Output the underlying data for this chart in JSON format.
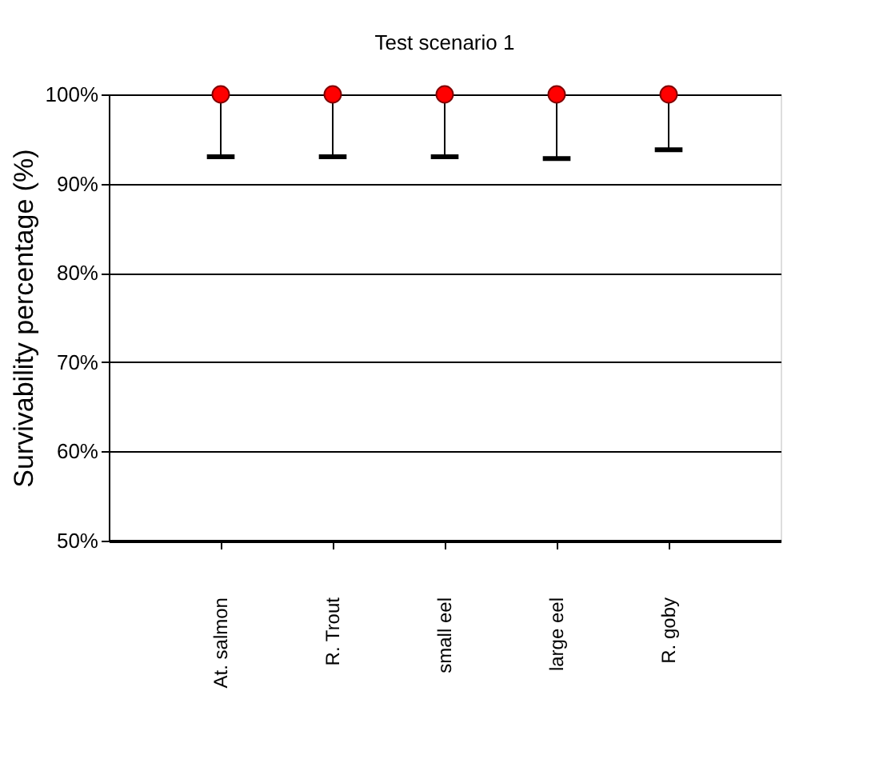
{
  "chart_data": {
    "type": "scatter",
    "title": "Test scenario 1",
    "ylabel": "Survivability percentage (%)",
    "categories": [
      "At. salmon",
      "R. Trout",
      "small eel",
      "large  eel",
      "R. goby"
    ],
    "series": [
      {
        "color": "#ff0000",
        "values": [
          100,
          100,
          100,
          100,
          100
        ],
        "errors": [
          [
            93,
            100
          ],
          [
            93,
            100
          ],
          [
            93,
            100
          ],
          [
            92.8,
            100
          ],
          [
            93.8,
            100
          ]
        ]
      }
    ],
    "ylim": [
      50,
      100
    ],
    "yticks": [
      {
        "value": 50,
        "label": "50%"
      },
      {
        "value": 60,
        "label": "60%"
      },
      {
        "value": 70,
        "label": "70%"
      },
      {
        "value": 80,
        "label": "80%"
      },
      {
        "value": 90,
        "label": "90%"
      },
      {
        "value": 100,
        "label": "100%"
      }
    ],
    "grid": "y",
    "marker": "circle"
  }
}
